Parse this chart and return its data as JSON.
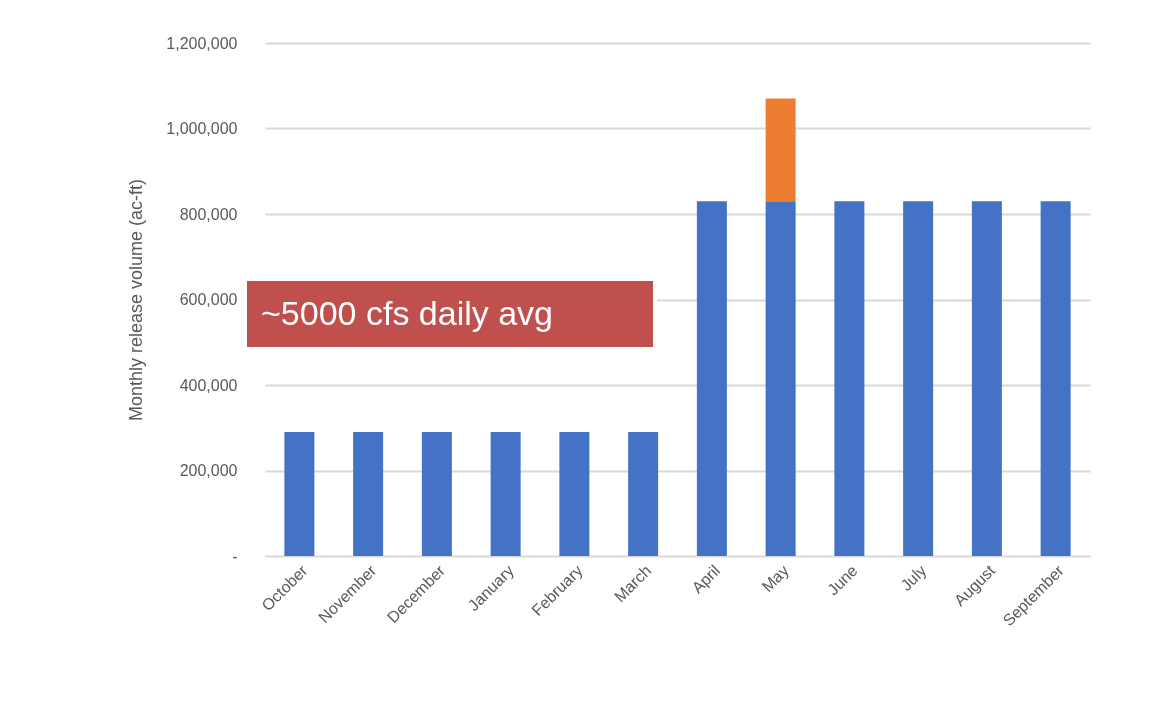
{
  "chart_data": {
    "type": "bar",
    "stacked": true,
    "categories": [
      "October",
      "November",
      "December",
      "January",
      "February",
      "March",
      "April",
      "May",
      "June",
      "July",
      "August",
      "September"
    ],
    "series": [
      {
        "color": "#4472c4",
        "values": [
          290000,
          290000,
          290000,
          290000,
          290000,
          290000,
          830000,
          830000,
          830000,
          830000,
          830000,
          830000
        ]
      },
      {
        "color": "#ed7d31",
        "values": [
          null,
          null,
          null,
          null,
          null,
          null,
          null,
          240000,
          null,
          null,
          null,
          null
        ]
      }
    ],
    "ylabel": "Monthly release volume (ac-ft)",
    "ylim": [
      0,
      1200000
    ],
    "yticks": [
      {
        "value": 0,
        "label": "-"
      },
      {
        "value": 200000,
        "label": "200,000"
      },
      {
        "value": 400000,
        "label": "400,000"
      },
      {
        "value": 600000,
        "label": "600,000"
      },
      {
        "value": 800000,
        "label": "800,000"
      },
      {
        "value": 1000000,
        "label": "1,000,000"
      },
      {
        "value": 1200000,
        "label": "1,200,000"
      }
    ],
    "grid": "y",
    "legend": false,
    "annotations": [
      "~5000 cfs daily avg"
    ]
  }
}
